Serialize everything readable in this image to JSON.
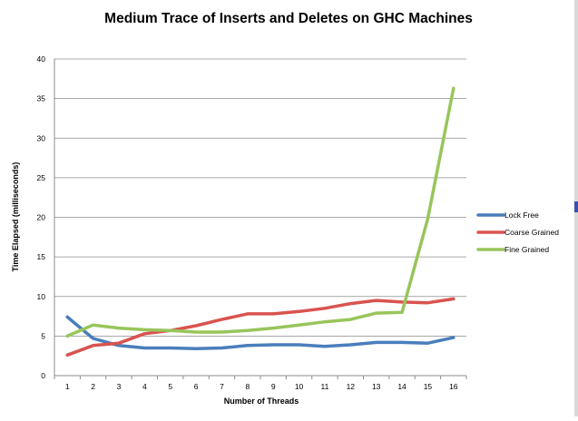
{
  "chart_data": {
    "type": "line",
    "title": "Medium Trace of Inserts and Deletes on GHC Machines",
    "xlabel": "Number of Threads",
    "ylabel": "Time Elapsed (milliseconds)",
    "categories": [
      "1",
      "2",
      "3",
      "4",
      "5",
      "6",
      "7",
      "8",
      "9",
      "10",
      "11",
      "12",
      "13",
      "14",
      "15",
      "16"
    ],
    "ylim": [
      0,
      40
    ],
    "yticks": [
      "0",
      "5",
      "10",
      "15",
      "20",
      "25",
      "30",
      "35",
      "40"
    ],
    "grid": true,
    "legend_position": "right",
    "series": [
      {
        "name": "Lock Free",
        "color": "#4a7ebb",
        "values": [
          7.4,
          4.7,
          3.8,
          3.5,
          3.5,
          3.4,
          3.5,
          3.8,
          3.9,
          3.9,
          3.7,
          3.9,
          4.2,
          4.2,
          4.1,
          4.8
        ]
      },
      {
        "name": "Coarse Grained",
        "color": "#d9534f",
        "values": [
          2.6,
          3.8,
          4.1,
          5.3,
          5.7,
          6.3,
          7.1,
          7.8,
          7.8,
          8.1,
          8.5,
          9.1,
          9.5,
          9.3,
          9.2,
          9.7
        ]
      },
      {
        "name": "Fine Grained",
        "color": "#98c55b",
        "values": [
          5.0,
          6.4,
          6.0,
          5.8,
          5.7,
          5.5,
          5.5,
          5.7,
          6.0,
          6.4,
          6.8,
          7.1,
          7.9,
          8.0,
          19.8,
          36.3
        ]
      }
    ]
  }
}
